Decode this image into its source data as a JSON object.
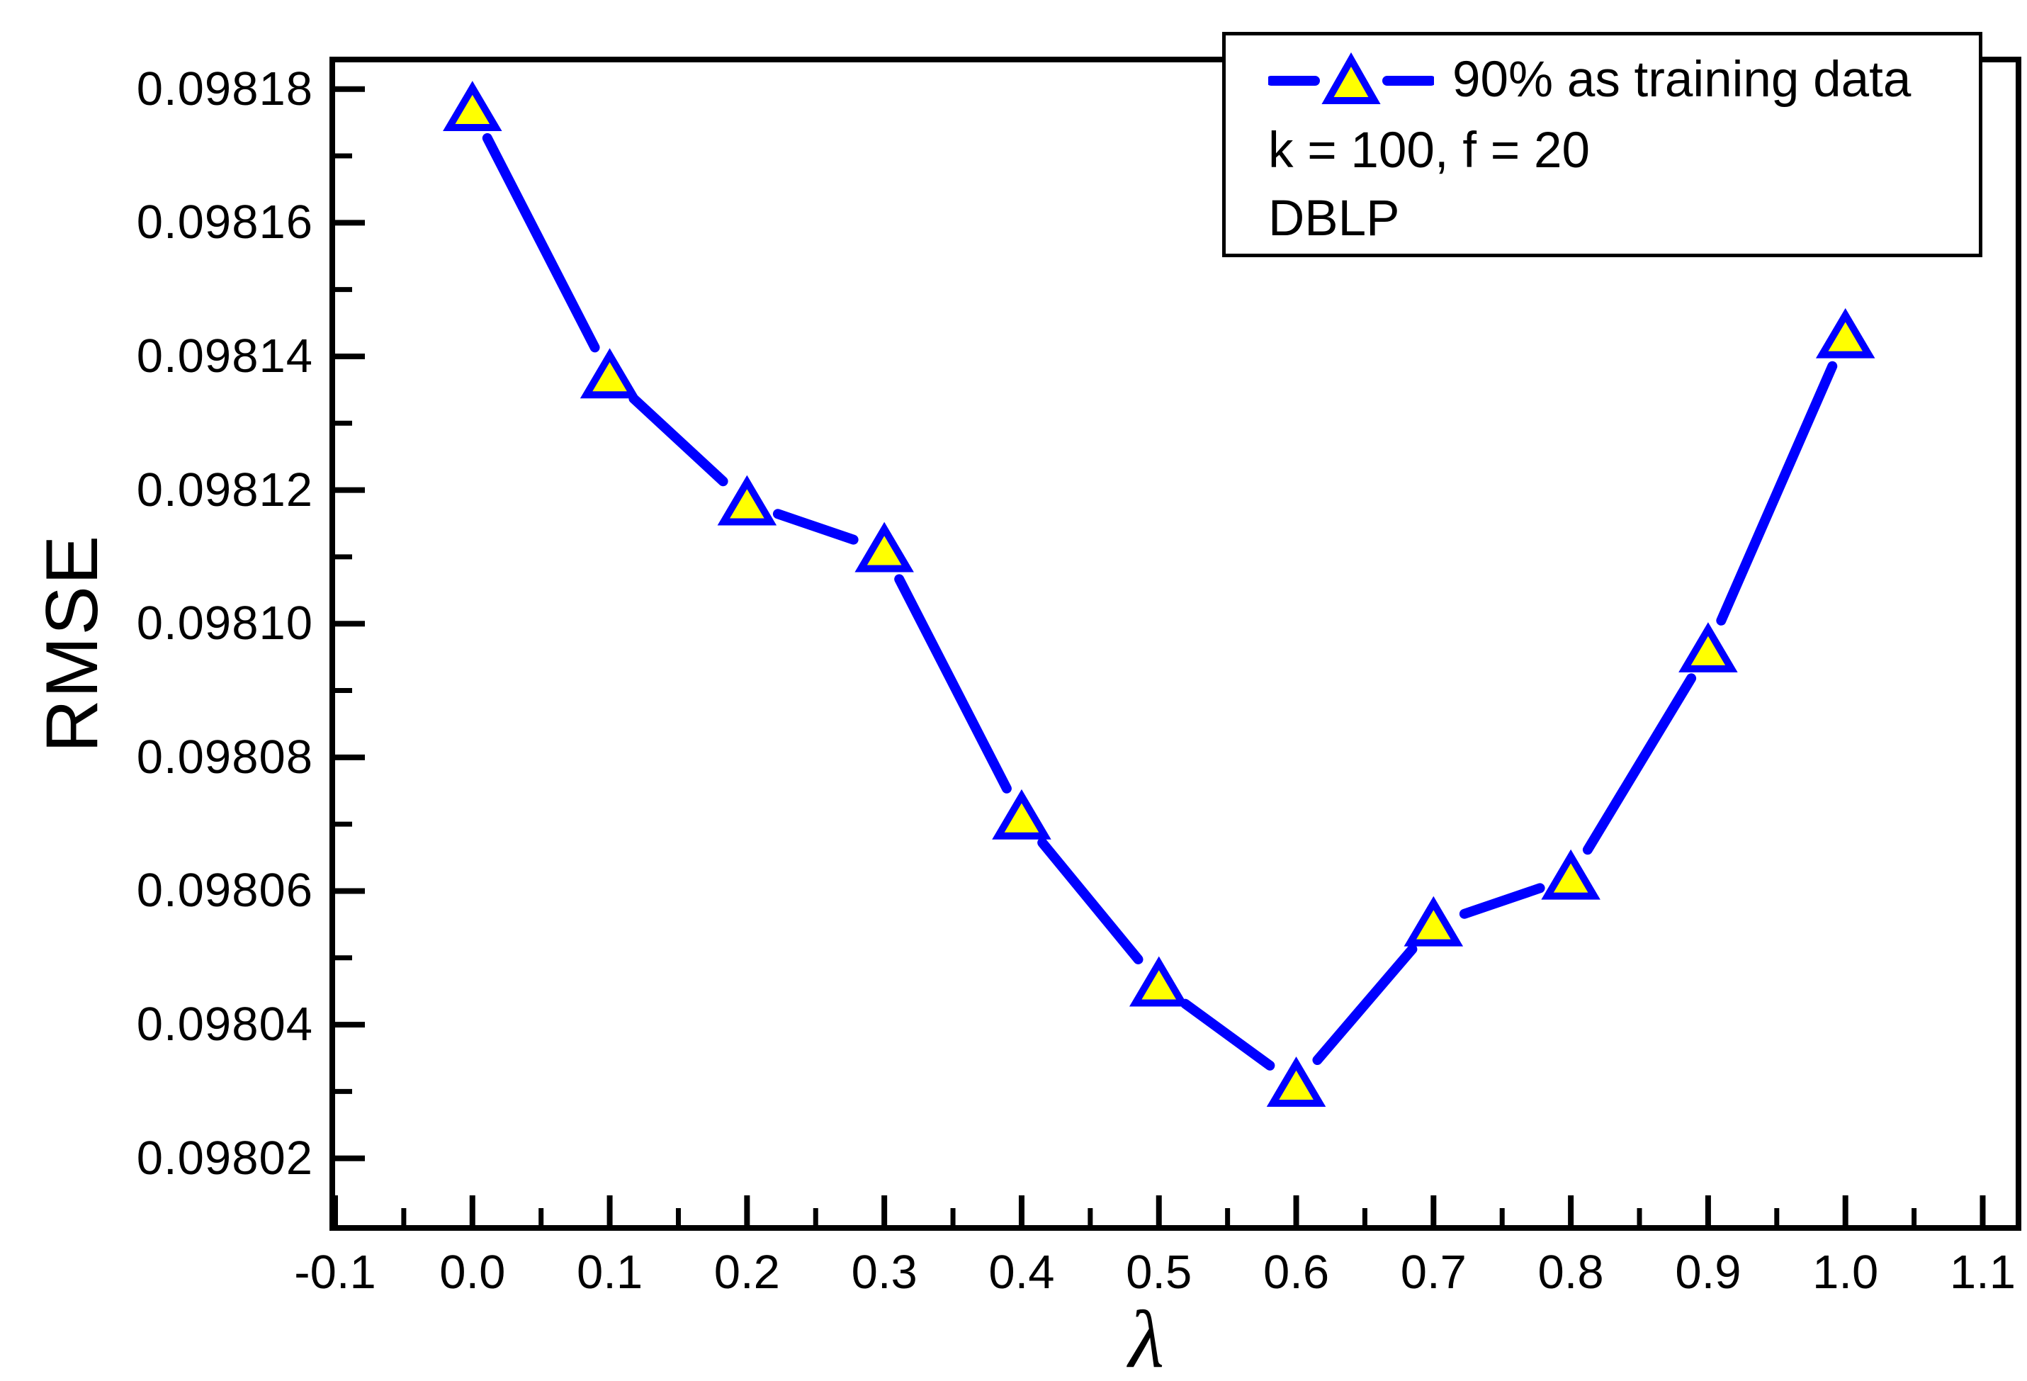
{
  "y_axis": {
    "label": "RMSE",
    "tick_values": [
      0.09802,
      0.09804,
      0.09806,
      0.09808,
      0.0981,
      0.09812,
      0.09814,
      0.09816,
      0.09818
    ],
    "tick_labels": [
      "0.09802",
      "0.09804",
      "0.09806",
      "0.09808",
      "0.09810",
      "0.09812",
      "0.09814",
      "0.09816",
      "0.09818"
    ],
    "minor_tick_values": [
      0.09803,
      0.09805,
      0.09807,
      0.09809,
      0.09811,
      0.09813,
      0.09815,
      0.09817
    ]
  },
  "x_axis": {
    "label": "λ",
    "tick_values": [
      -0.1,
      0.0,
      0.1,
      0.2,
      0.3,
      0.4,
      0.5,
      0.6,
      0.7,
      0.8,
      0.9,
      1.0,
      1.1
    ],
    "tick_labels": [
      "-0.1",
      "0.0",
      "0.1",
      "0.2",
      "0.3",
      "0.4",
      "0.5",
      "0.6",
      "0.7",
      "0.8",
      "0.9",
      "1.0",
      "1.1"
    ],
    "minor_tick_values": [
      -0.05,
      0.05,
      0.15,
      0.25,
      0.35,
      0.45,
      0.55,
      0.65,
      0.75,
      0.85,
      0.95,
      1.05
    ]
  },
  "legend": {
    "line1": "90% as training data",
    "line2": "k = 100, f = 20",
    "line3": "DBLP"
  },
  "style": {
    "line_color": "#0000ff",
    "marker_fill": "#ffff00",
    "marker_edge": "#0000ff",
    "axis_color": "#000000"
  },
  "chart_data": {
    "type": "line",
    "series": [
      {
        "name": "90% as training data",
        "x": [
          0.0,
          0.1,
          0.2,
          0.3,
          0.4,
          0.5,
          0.6,
          0.7,
          0.8,
          0.9,
          1.0
        ],
        "y": [
          0.098177,
          0.098137,
          0.098118,
          0.098111,
          0.098071,
          0.098046,
          0.098031,
          0.098055,
          0.098062,
          0.098096,
          0.098143
        ]
      }
    ],
    "annotations": [
      "k = 100, f = 20",
      "DBLP"
    ],
    "title": "",
    "xlabel": "λ",
    "ylabel": "RMSE",
    "xlim": [
      -0.1,
      1.124
    ],
    "ylim": [
      0.09801,
      0.098184
    ],
    "grid": false,
    "legend_position": "top-right",
    "marker": "triangle-up"
  }
}
